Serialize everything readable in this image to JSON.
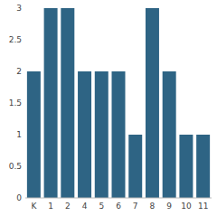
{
  "chart_data": {
    "type": "bar",
    "categories": [
      "K",
      "1",
      "2",
      "4",
      "5",
      "6",
      "7",
      "8",
      "9",
      "10",
      "11"
    ],
    "values": [
      2,
      3,
      3,
      2,
      2,
      2,
      1,
      3,
      2,
      1,
      1
    ],
    "color": "#2e6484",
    "ylim": [
      0,
      3
    ],
    "yticks": [
      0,
      0.5,
      1,
      1.5,
      2,
      2.5,
      3
    ],
    "grid": false
  }
}
